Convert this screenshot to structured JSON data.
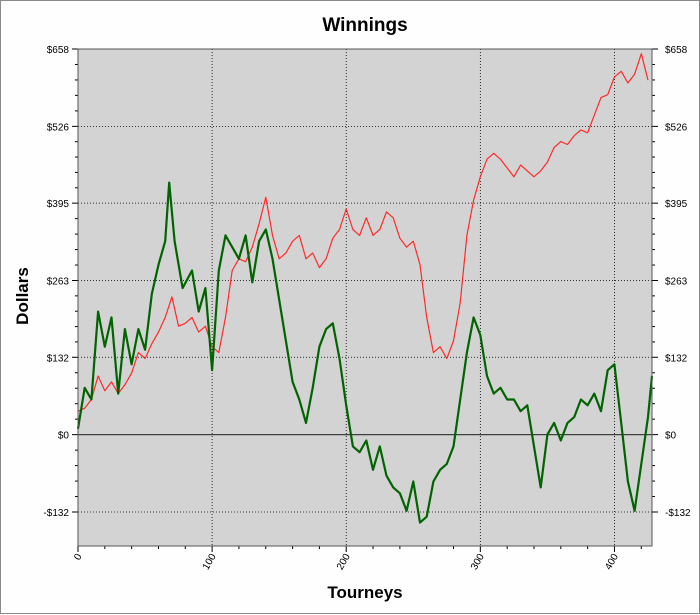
{
  "chart_data": {
    "type": "line",
    "title": "Winnings",
    "xlabel": "Tourneys",
    "ylabel": "Dollars",
    "xlim": [
      0,
      428
    ],
    "ylim": [
      -190,
      658
    ],
    "x_ticks": [
      0,
      100,
      200,
      300,
      400
    ],
    "x_tick_labels": [
      "0",
      "100",
      "200",
      "300",
      "400"
    ],
    "y_ticks": [
      -132,
      0,
      132,
      263,
      395,
      526,
      658
    ],
    "y_tick_labels": [
      "-$132",
      "$0",
      "$132",
      "$263",
      "$395",
      "$526",
      "$658"
    ],
    "grid": true,
    "legend": "none",
    "colors": {
      "plot_background": "#d3d3d3",
      "grid": "#000000",
      "zero_line": "#404040",
      "series_red": "#ff2a2a",
      "series_green": "#006400"
    },
    "series": [
      {
        "color": "#ff2a2a",
        "points": [
          [
            0,
            40
          ],
          [
            5,
            45
          ],
          [
            10,
            60
          ],
          [
            15,
            100
          ],
          [
            20,
            75
          ],
          [
            25,
            90
          ],
          [
            30,
            70
          ],
          [
            35,
            85
          ],
          [
            40,
            105
          ],
          [
            45,
            140
          ],
          [
            50,
            130
          ],
          [
            55,
            155
          ],
          [
            60,
            175
          ],
          [
            65,
            200
          ],
          [
            70,
            235
          ],
          [
            75,
            185
          ],
          [
            80,
            190
          ],
          [
            85,
            200
          ],
          [
            90,
            175
          ],
          [
            95,
            185
          ],
          [
            100,
            150
          ],
          [
            105,
            140
          ],
          [
            110,
            200
          ],
          [
            115,
            280
          ],
          [
            120,
            300
          ],
          [
            125,
            295
          ],
          [
            130,
            320
          ],
          [
            135,
            360
          ],
          [
            140,
            405
          ],
          [
            145,
            340
          ],
          [
            150,
            300
          ],
          [
            155,
            310
          ],
          [
            160,
            330
          ],
          [
            165,
            340
          ],
          [
            170,
            300
          ],
          [
            175,
            310
          ],
          [
            180,
            285
          ],
          [
            185,
            300
          ],
          [
            190,
            335
          ],
          [
            195,
            350
          ],
          [
            200,
            385
          ],
          [
            205,
            350
          ],
          [
            210,
            340
          ],
          [
            215,
            370
          ],
          [
            220,
            340
          ],
          [
            225,
            350
          ],
          [
            230,
            380
          ],
          [
            235,
            370
          ],
          [
            240,
            335
          ],
          [
            245,
            320
          ],
          [
            250,
            330
          ],
          [
            255,
            290
          ],
          [
            260,
            200
          ],
          [
            265,
            140
          ],
          [
            270,
            150
          ],
          [
            275,
            130
          ],
          [
            280,
            160
          ],
          [
            285,
            225
          ],
          [
            290,
            340
          ],
          [
            295,
            400
          ],
          [
            300,
            440
          ],
          [
            305,
            470
          ],
          [
            310,
            480
          ],
          [
            315,
            470
          ],
          [
            320,
            455
          ],
          [
            325,
            440
          ],
          [
            330,
            460
          ],
          [
            335,
            450
          ],
          [
            340,
            440
          ],
          [
            345,
            450
          ],
          [
            350,
            465
          ],
          [
            355,
            490
          ],
          [
            360,
            500
          ],
          [
            365,
            495
          ],
          [
            370,
            510
          ],
          [
            375,
            520
          ],
          [
            380,
            515
          ],
          [
            385,
            545
          ],
          [
            390,
            575
          ],
          [
            395,
            580
          ],
          [
            400,
            610
          ],
          [
            405,
            620
          ],
          [
            410,
            600
          ],
          [
            415,
            615
          ],
          [
            420,
            650
          ],
          [
            425,
            605
          ]
        ]
      },
      {
        "color": "#006400",
        "points": [
          [
            0,
            10
          ],
          [
            5,
            80
          ],
          [
            10,
            60
          ],
          [
            15,
            210
          ],
          [
            20,
            150
          ],
          [
            25,
            200
          ],
          [
            30,
            70
          ],
          [
            35,
            180
          ],
          [
            40,
            120
          ],
          [
            45,
            180
          ],
          [
            50,
            145
          ],
          [
            55,
            240
          ],
          [
            60,
            290
          ],
          [
            65,
            330
          ],
          [
            68,
            430
          ],
          [
            72,
            330
          ],
          [
            78,
            250
          ],
          [
            85,
            280
          ],
          [
            90,
            210
          ],
          [
            95,
            250
          ],
          [
            100,
            110
          ],
          [
            105,
            280
          ],
          [
            110,
            340
          ],
          [
            115,
            320
          ],
          [
            120,
            300
          ],
          [
            125,
            340
          ],
          [
            130,
            260
          ],
          [
            135,
            330
          ],
          [
            140,
            350
          ],
          [
            145,
            300
          ],
          [
            150,
            230
          ],
          [
            155,
            160
          ],
          [
            160,
            90
          ],
          [
            165,
            60
          ],
          [
            170,
            20
          ],
          [
            175,
            80
          ],
          [
            180,
            150
          ],
          [
            185,
            180
          ],
          [
            190,
            190
          ],
          [
            195,
            130
          ],
          [
            200,
            50
          ],
          [
            205,
            -20
          ],
          [
            210,
            -30
          ],
          [
            215,
            -10
          ],
          [
            220,
            -60
          ],
          [
            225,
            -20
          ],
          [
            230,
            -70
          ],
          [
            235,
            -90
          ],
          [
            240,
            -100
          ],
          [
            245,
            -130
          ],
          [
            250,
            -80
          ],
          [
            255,
            -150
          ],
          [
            260,
            -140
          ],
          [
            265,
            -80
          ],
          [
            270,
            -60
          ],
          [
            275,
            -50
          ],
          [
            280,
            -20
          ],
          [
            285,
            60
          ],
          [
            290,
            140
          ],
          [
            295,
            200
          ],
          [
            300,
            170
          ],
          [
            305,
            100
          ],
          [
            310,
            70
          ],
          [
            315,
            80
          ],
          [
            320,
            60
          ],
          [
            325,
            60
          ],
          [
            330,
            40
          ],
          [
            335,
            50
          ],
          [
            340,
            -20
          ],
          [
            345,
            -90
          ],
          [
            350,
            0
          ],
          [
            355,
            20
          ],
          [
            360,
            -10
          ],
          [
            365,
            20
          ],
          [
            370,
            30
          ],
          [
            375,
            60
          ],
          [
            380,
            50
          ],
          [
            385,
            70
          ],
          [
            390,
            40
          ],
          [
            395,
            110
          ],
          [
            400,
            120
          ],
          [
            405,
            20
          ],
          [
            410,
            -80
          ],
          [
            415,
            -130
          ],
          [
            420,
            -50
          ],
          [
            425,
            30
          ],
          [
            428,
            100
          ]
        ]
      }
    ]
  }
}
